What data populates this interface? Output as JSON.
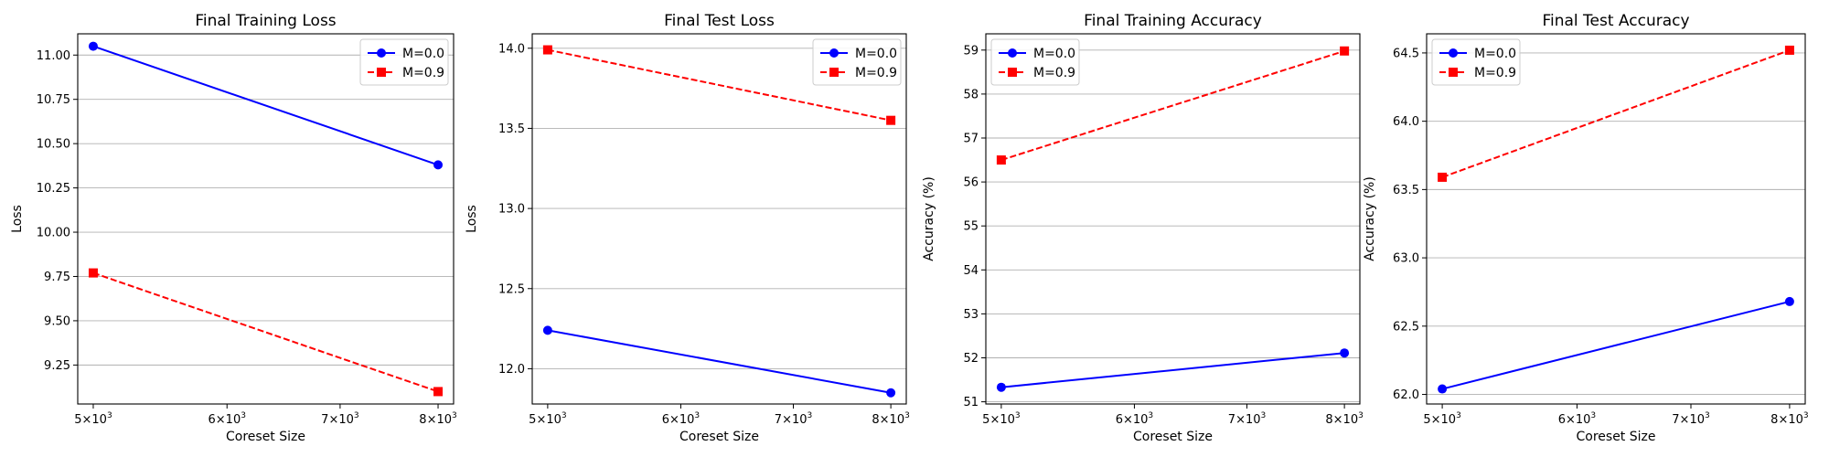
{
  "chart_data": [
    {
      "type": "line",
      "title": "Final Training Loss",
      "xlabel": "Coreset Size",
      "ylabel": "Loss",
      "x": [
        5000,
        8000
      ],
      "xscale": "log",
      "xticks": [
        5000,
        6000,
        7000,
        8000
      ],
      "xtick_labels": [
        [
          "5",
          "3"
        ],
        [
          "6",
          "3"
        ],
        [
          "7",
          "3"
        ],
        [
          "8",
          "3"
        ]
      ],
      "ylim": [
        9.03,
        11.12
      ],
      "yticks": [
        9.25,
        9.5,
        9.75,
        10.0,
        10.25,
        10.5,
        10.75,
        11.0
      ],
      "ytick_labels": [
        "9.25",
        "9.50",
        "9.75",
        "10.00",
        "10.25",
        "10.50",
        "10.75",
        "11.00"
      ],
      "grid": "y",
      "legend_loc": "upper right",
      "series": [
        {
          "name": "M=0.0",
          "values": [
            11.05,
            10.38
          ],
          "color": "#0000ff",
          "marker": "circle",
          "linestyle": "solid"
        },
        {
          "name": "M=0.9",
          "values": [
            9.77,
            9.1
          ],
          "color": "#ff0000",
          "marker": "square",
          "linestyle": "dashed"
        }
      ]
    },
    {
      "type": "line",
      "title": "Final Test Loss",
      "xlabel": "Coreset Size",
      "ylabel": "Loss",
      "x": [
        5000,
        8000
      ],
      "xscale": "log",
      "xticks": [
        5000,
        6000,
        7000,
        8000
      ],
      "xtick_labels": [
        [
          "5",
          "3"
        ],
        [
          "6",
          "3"
        ],
        [
          "7",
          "3"
        ],
        [
          "8",
          "3"
        ]
      ],
      "ylim": [
        11.78,
        14.09
      ],
      "yticks": [
        12.0,
        12.5,
        13.0,
        13.5,
        14.0
      ],
      "ytick_labels": [
        "12.0",
        "12.5",
        "13.0",
        "13.5",
        "14.0"
      ],
      "grid": "y",
      "legend_loc": "upper right",
      "series": [
        {
          "name": "M=0.0",
          "values": [
            12.24,
            11.85
          ],
          "color": "#0000ff",
          "marker": "circle",
          "linestyle": "solid"
        },
        {
          "name": "M=0.9",
          "values": [
            13.99,
            13.55
          ],
          "color": "#ff0000",
          "marker": "square",
          "linestyle": "dashed"
        }
      ]
    },
    {
      "type": "line",
      "title": "Final Training Accuracy",
      "xlabel": "Coreset Size",
      "ylabel": "Accuracy (%)",
      "x": [
        5000,
        8000
      ],
      "xscale": "log",
      "xticks": [
        5000,
        6000,
        7000,
        8000
      ],
      "xtick_labels": [
        [
          "5",
          "3"
        ],
        [
          "6",
          "3"
        ],
        [
          "7",
          "3"
        ],
        [
          "8",
          "3"
        ]
      ],
      "ylim": [
        50.95,
        59.37
      ],
      "yticks": [
        51,
        52,
        53,
        54,
        55,
        56,
        57,
        58,
        59
      ],
      "ytick_labels": [
        "51",
        "52",
        "53",
        "54",
        "55",
        "56",
        "57",
        "58",
        "59"
      ],
      "grid": "y",
      "legend_loc": "upper left",
      "series": [
        {
          "name": "M=0.0",
          "values": [
            51.33,
            52.11
          ],
          "color": "#0000ff",
          "marker": "circle",
          "linestyle": "solid"
        },
        {
          "name": "M=0.9",
          "values": [
            56.5,
            58.98
          ],
          "color": "#ff0000",
          "marker": "square",
          "linestyle": "dashed"
        }
      ]
    },
    {
      "type": "line",
      "title": "Final Test Accuracy",
      "xlabel": "Coreset Size",
      "ylabel": "Accuracy (%)",
      "x": [
        5000,
        8000
      ],
      "xscale": "log",
      "xticks": [
        5000,
        6000,
        7000,
        8000
      ],
      "xtick_labels": [
        [
          "5",
          "3"
        ],
        [
          "6",
          "3"
        ],
        [
          "7",
          "3"
        ],
        [
          "8",
          "3"
        ]
      ],
      "ylim": [
        61.93,
        64.64
      ],
      "yticks": [
        62.0,
        62.5,
        63.0,
        63.5,
        64.0,
        64.5
      ],
      "ytick_labels": [
        "62.0",
        "62.5",
        "63.0",
        "63.5",
        "64.0",
        "64.5"
      ],
      "grid": "y",
      "legend_loc": "upper left",
      "series": [
        {
          "name": "M=0.0",
          "values": [
            62.04,
            62.68
          ],
          "color": "#0000ff",
          "marker": "circle",
          "linestyle": "solid"
        },
        {
          "name": "M=0.9",
          "values": [
            63.59,
            64.52
          ],
          "color": "#ff0000",
          "marker": "square",
          "linestyle": "dashed"
        }
      ]
    }
  ]
}
